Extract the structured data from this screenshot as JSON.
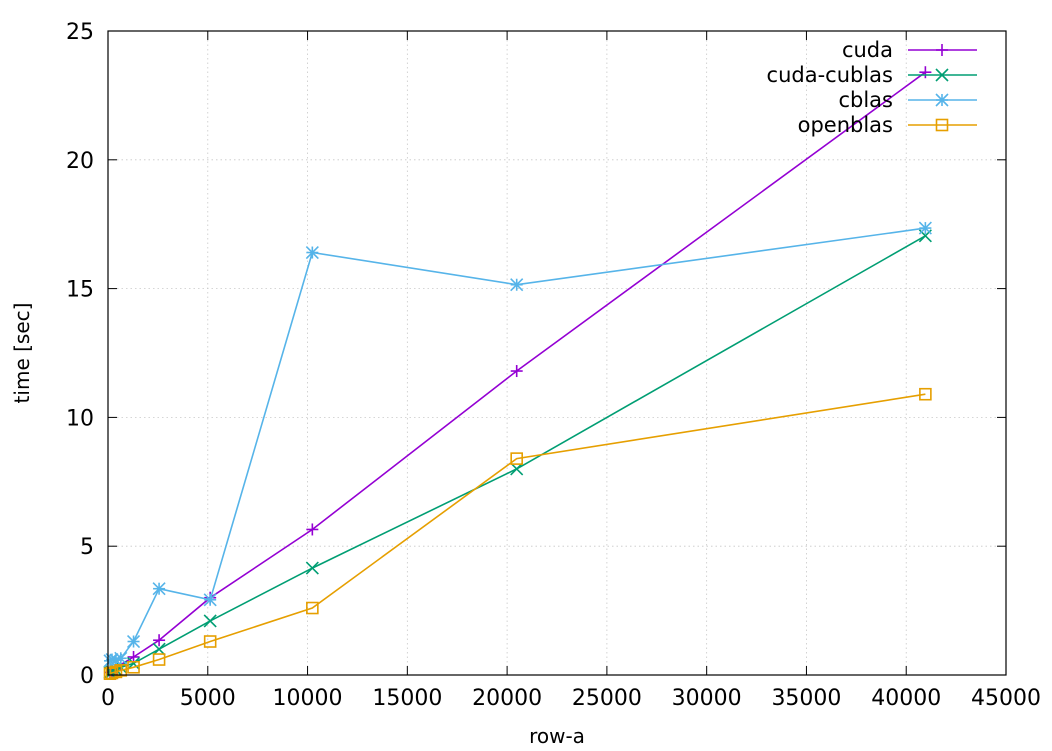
{
  "chart_data": {
    "type": "line",
    "title": "",
    "xlabel": "row-a",
    "ylabel": "time [sec]",
    "xlim": [
      0,
      45000
    ],
    "ylim": [
      0,
      25
    ],
    "xticks": [
      0,
      5000,
      10000,
      15000,
      20000,
      25000,
      30000,
      35000,
      40000,
      45000
    ],
    "yticks": [
      0,
      5,
      10,
      15,
      20,
      25
    ],
    "x_tick_labels": [
      "0",
      "5000",
      "10000",
      "15000",
      "20000",
      "25000",
      "30000",
      "35000",
      "40000",
      "45000"
    ],
    "y_tick_labels": [
      "0",
      "5",
      "10",
      "15",
      "20",
      "25"
    ],
    "grid": true,
    "legend_position": "top-right",
    "x": [
      100,
      200,
      400,
      640,
      1280,
      2560,
      5120,
      10240,
      20480,
      40960
    ],
    "series": [
      {
        "name": "cuda",
        "color": "#9400d3",
        "marker": "plus",
        "values": [
          0.1,
          0.15,
          0.25,
          0.4,
          0.7,
          1.35,
          3.0,
          5.65,
          11.8,
          23.4
        ]
      },
      {
        "name": "cuda-cublas",
        "color": "#009e73",
        "marker": "cross",
        "values": [
          0.1,
          0.12,
          0.2,
          0.3,
          0.45,
          1.0,
          2.1,
          4.15,
          8.0,
          17.05
        ]
      },
      {
        "name": "cblas",
        "color": "#56b4e9",
        "marker": "asterisk",
        "values": [
          0.55,
          0.6,
          0.58,
          0.65,
          1.3,
          3.35,
          2.92,
          16.4,
          15.15,
          17.35
        ]
      },
      {
        "name": "openblas",
        "color": "#e69f00",
        "marker": "square",
        "values": [
          0.05,
          0.08,
          0.12,
          0.18,
          0.3,
          0.6,
          1.3,
          2.6,
          8.4,
          10.9
        ]
      }
    ]
  }
}
